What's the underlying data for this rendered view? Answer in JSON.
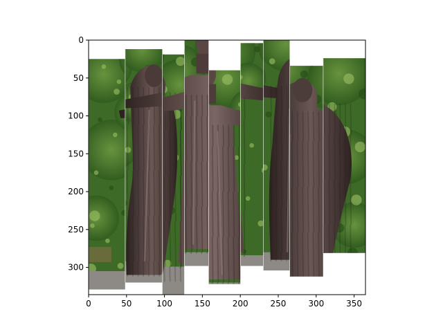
{
  "figure": {
    "background": "#ffffff",
    "axes_color": "#000000"
  },
  "chart_data": {
    "type": "image",
    "title": "",
    "xlabel": "",
    "ylabel": "",
    "xlim": [
      0,
      365
    ],
    "ylim": [
      336,
      0
    ],
    "y_inverted": true,
    "grid": false,
    "legend": "none",
    "xticks": [
      0,
      50,
      100,
      150,
      200,
      250,
      300,
      350
    ],
    "yticks": [
      0,
      50,
      100,
      150,
      200,
      250,
      300
    ],
    "xtick_labels": [
      "0",
      "50",
      "100",
      "150",
      "200",
      "250",
      "300",
      "350"
    ],
    "ytick_labels": [
      "0",
      "50",
      "100",
      "150",
      "200",
      "250",
      "300"
    ],
    "image_content": "bronze statue group of three figures in front of green foliage",
    "strips": [
      {
        "x0": 0,
        "x1": 48,
        "y0": 25,
        "y1": 329,
        "bg": "foliage"
      },
      {
        "x0": 48,
        "x1": 97,
        "y0": 12,
        "y1": 320,
        "bg": "foliage"
      },
      {
        "x0": 97,
        "x1": 126,
        "y0": 19,
        "y1": 336,
        "bg": "foliage"
      },
      {
        "x0": 126,
        "x1": 158,
        "y0": 0,
        "y1": 298,
        "bg": "foliage"
      },
      {
        "x0": 158,
        "x1": 200,
        "y0": 40,
        "y1": 322,
        "bg": "foliage"
      },
      {
        "x0": 200,
        "x1": 230,
        "y0": 4,
        "y1": 298,
        "bg": "foliage"
      },
      {
        "x0": 230,
        "x1": 265,
        "y0": 0,
        "y1": 304,
        "bg": "foliage"
      },
      {
        "x0": 265,
        "x1": 309,
        "y0": 34,
        "y1": 312,
        "bg": "foliage"
      },
      {
        "x0": 309,
        "x1": 365,
        "y0": 24,
        "y1": 281,
        "bg": "foliage"
      }
    ]
  }
}
